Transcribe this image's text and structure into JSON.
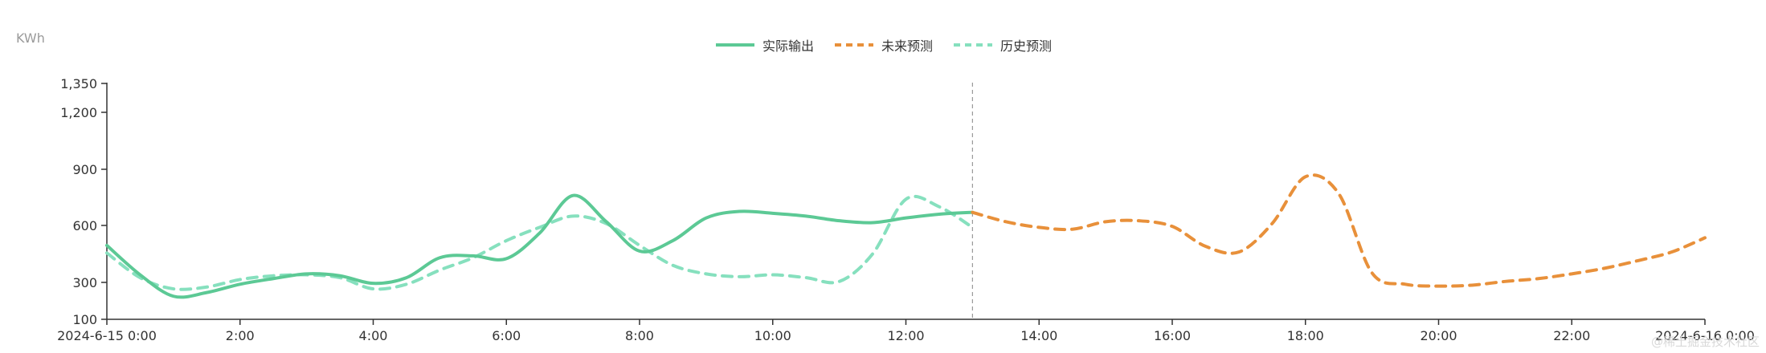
{
  "chart_data": {
    "type": "line",
    "unit_label": "KWh",
    "y_ticks": [
      100,
      300,
      600,
      900,
      1200,
      1350
    ],
    "y_tick_labels": [
      "100",
      "300",
      "600",
      "900",
      "1,200",
      "1,350"
    ],
    "x_ticks": [
      0,
      2,
      4,
      6,
      8,
      10,
      12,
      14,
      16,
      18,
      20,
      22,
      24
    ],
    "x_tick_labels": [
      "2024-6-15 0:00",
      "2:00",
      "4:00",
      "6:00",
      "8:00",
      "10:00",
      "12:00",
      "14:00",
      "16:00",
      "18:00",
      "20:00",
      "22:00",
      "2024-6-16 0:00"
    ],
    "xlim": [
      0,
      24
    ],
    "divider_x": 13,
    "series": [
      {
        "name": "实际输出",
        "color": "#5cc995",
        "style": "solid",
        "points": [
          [
            0,
            495
          ],
          [
            0.5,
            340
          ],
          [
            1,
            225
          ],
          [
            1.5,
            245
          ],
          [
            2,
            290
          ],
          [
            2.5,
            320
          ],
          [
            3,
            345
          ],
          [
            3.5,
            335
          ],
          [
            4,
            295
          ],
          [
            4.5,
            325
          ],
          [
            5,
            430
          ],
          [
            5.5,
            440
          ],
          [
            6,
            425
          ],
          [
            6.5,
            560
          ],
          [
            7,
            760
          ],
          [
            7.5,
            620
          ],
          [
            8,
            465
          ],
          [
            8.5,
            520
          ],
          [
            9,
            640
          ],
          [
            9.5,
            675
          ],
          [
            10,
            665
          ],
          [
            10.5,
            650
          ],
          [
            11,
            625
          ],
          [
            11.5,
            615
          ],
          [
            12,
            640
          ],
          [
            12.5,
            660
          ],
          [
            13,
            670
          ]
        ]
      },
      {
        "name": "未来预测",
        "color": "#e8903a",
        "style": "dashed",
        "points": [
          [
            13,
            670
          ],
          [
            13.5,
            620
          ],
          [
            14,
            590
          ],
          [
            14.5,
            580
          ],
          [
            15,
            620
          ],
          [
            15.5,
            625
          ],
          [
            16,
            595
          ],
          [
            16.5,
            490
          ],
          [
            17,
            460
          ],
          [
            17.5,
            610
          ],
          [
            18,
            860
          ],
          [
            18.5,
            770
          ],
          [
            19,
            350
          ],
          [
            19.5,
            290
          ],
          [
            20,
            280
          ],
          [
            20.5,
            285
          ],
          [
            21,
            305
          ],
          [
            21.5,
            320
          ],
          [
            22,
            345
          ],
          [
            22.5,
            375
          ],
          [
            23,
            415
          ],
          [
            23.5,
            460
          ],
          [
            24,
            535
          ]
        ]
      },
      {
        "name": "历史预测",
        "color": "#86e0be",
        "style": "dashed",
        "points": [
          [
            0,
            455
          ],
          [
            0.5,
            325
          ],
          [
            1,
            265
          ],
          [
            1.5,
            275
          ],
          [
            2,
            315
          ],
          [
            2.5,
            335
          ],
          [
            3,
            340
          ],
          [
            3.5,
            325
          ],
          [
            4,
            265
          ],
          [
            4.5,
            290
          ],
          [
            5,
            365
          ],
          [
            5.5,
            430
          ],
          [
            6,
            520
          ],
          [
            6.5,
            590
          ],
          [
            7,
            650
          ],
          [
            7.5,
            610
          ],
          [
            8,
            495
          ],
          [
            8.5,
            390
          ],
          [
            9,
            345
          ],
          [
            9.5,
            330
          ],
          [
            10,
            340
          ],
          [
            10.5,
            325
          ],
          [
            11,
            305
          ],
          [
            11.5,
            450
          ],
          [
            12,
            740
          ],
          [
            12.5,
            700
          ],
          [
            13,
            590
          ]
        ]
      }
    ]
  },
  "watermark": "@稀土掘金技术社区"
}
